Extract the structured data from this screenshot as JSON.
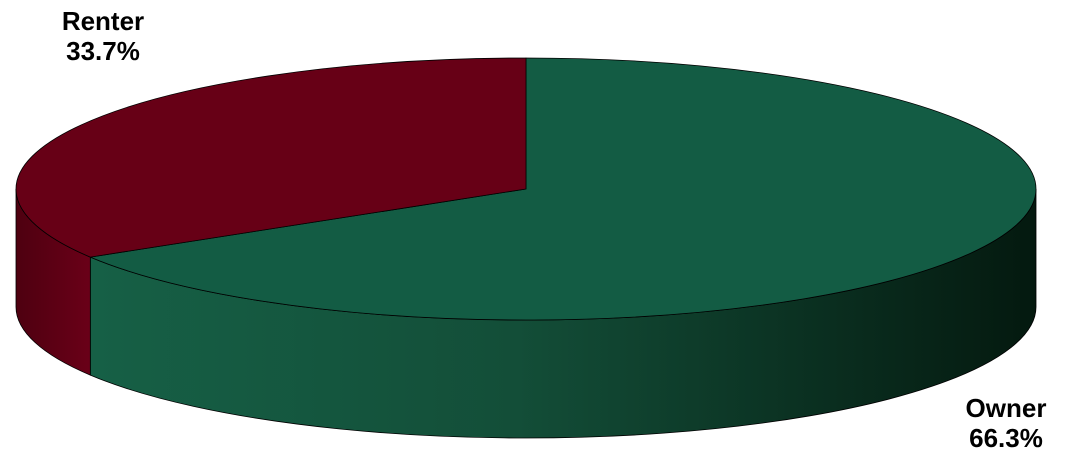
{
  "chart_data": {
    "type": "pie",
    "title": "",
    "three_d": true,
    "start_angle": "12 o'clock",
    "direction": "clockwise",
    "slices": [
      {
        "label": "Owner",
        "value": 66.3,
        "value_label": "66.3%",
        "color": "#135c44"
      },
      {
        "label": "Renter",
        "value": 33.7,
        "value_label": "33.7%",
        "color": "#670016"
      }
    ]
  }
}
